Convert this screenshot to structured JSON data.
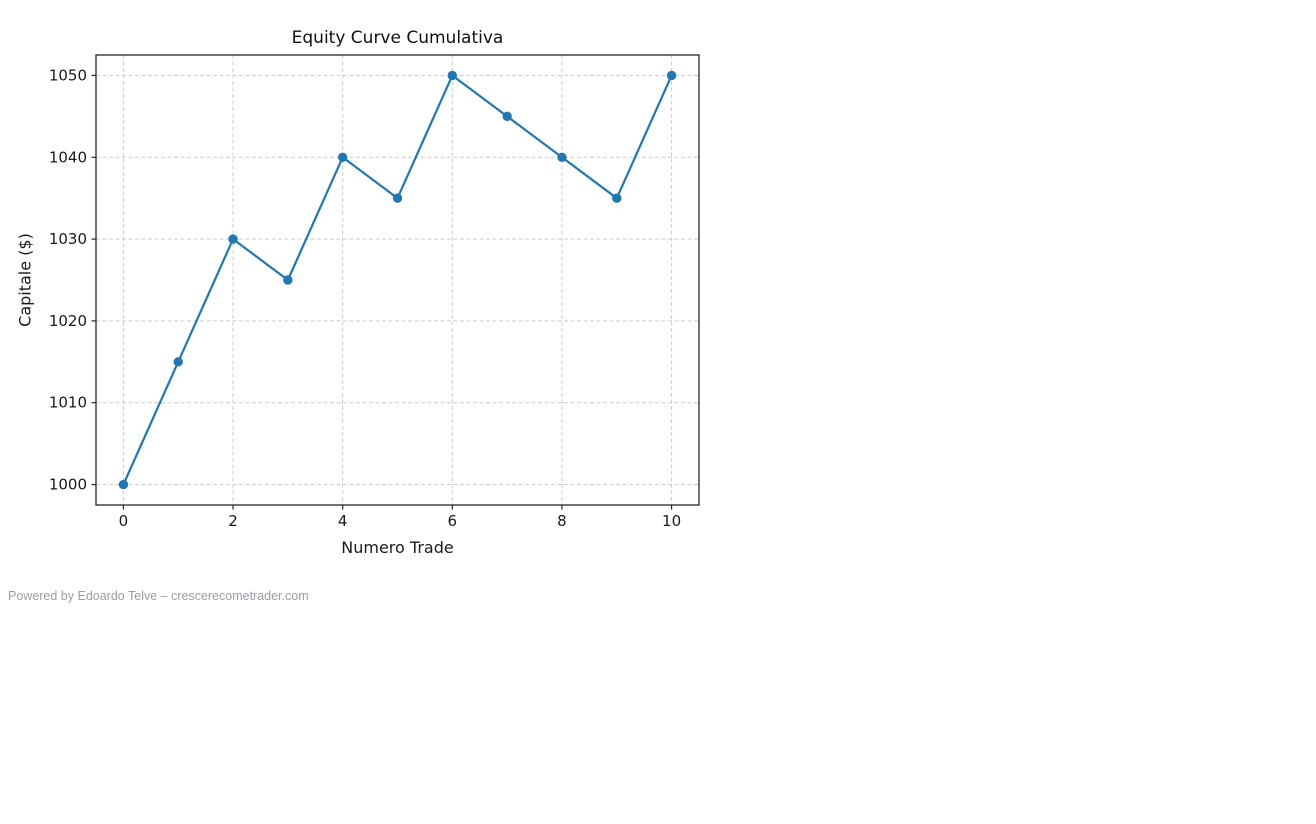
{
  "footer": {
    "text": "Powered by Edoardo Telve – crescerecometrader.com"
  },
  "chart_data": {
    "type": "line",
    "title": "Equity Curve Cumulativa",
    "xlabel": "Numero Trade",
    "ylabel": "Capitale ($)",
    "x": [
      0,
      1,
      2,
      3,
      4,
      5,
      6,
      7,
      8,
      9,
      10
    ],
    "y": [
      1000,
      1015,
      1030,
      1025,
      1040,
      1035,
      1050,
      1045,
      1040,
      1035,
      1050
    ],
    "xlim": [
      -0.5,
      10.5
    ],
    "ylim": [
      997.5,
      1052.5
    ],
    "x_ticks": [
      0,
      2,
      4,
      6,
      8,
      10
    ],
    "y_ticks": [
      1000,
      1010,
      1020,
      1030,
      1040,
      1050
    ],
    "grid": true,
    "legend": "none",
    "line_color": "#1f77b4",
    "marker": "circle",
    "marker_color": "#1f77b4",
    "grid_color": "#cccccc",
    "spine_color": "#262626",
    "tick_label_color": "#1a1a1a"
  }
}
